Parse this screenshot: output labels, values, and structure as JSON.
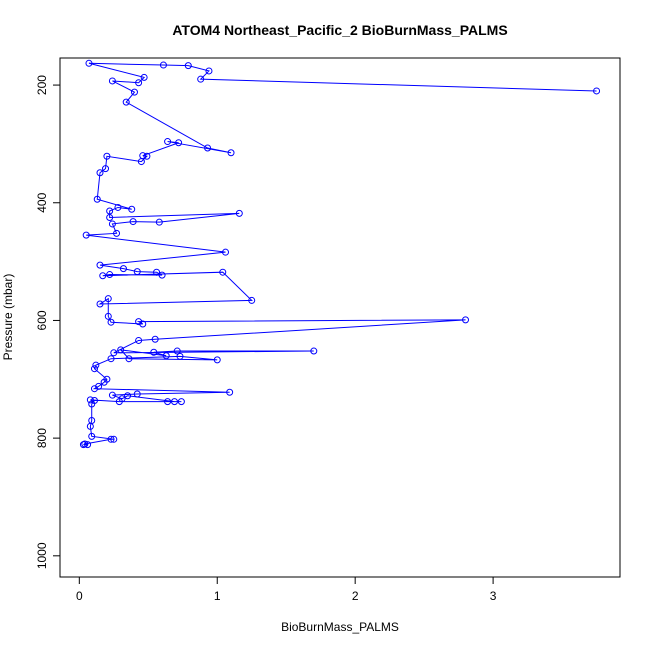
{
  "chart_data": {
    "type": "line",
    "title": "ATOM4 Northeast_Pacific_2 BioBurnMass_PALMS",
    "x_label": "BioBurnMass_PALMS",
    "y_label": "Pressure (mbar)",
    "color": "#0000ff",
    "x": [
      3.75,
      0.88,
      0.94,
      0.79,
      0.61,
      0.07,
      0.47,
      0.43,
      0.24,
      0.4,
      0.34,
      0.93,
      1.1,
      0.64,
      0.72,
      0.46,
      0.49,
      0.45,
      0.2,
      0.19,
      0.15,
      0.13,
      0.38,
      0.28,
      0.22,
      0.22,
      1.16,
      0.58,
      0.39,
      0.24,
      0.27,
      0.05,
      1.06,
      0.15,
      0.32,
      0.42,
      0.56,
      0.6,
      0.22,
      0.17,
      1.04,
      1.25,
      0.15,
      0.21,
      0.21,
      0.23,
      0.46,
      0.43,
      2.8,
      0.55,
      0.43,
      0.25,
      1.7,
      0.71,
      0.54,
      0.63,
      0.3,
      0.36,
      1.0,
      0.73,
      0.23,
      0.12,
      0.11,
      0.2,
      0.18,
      0.14,
      0.11,
      1.09,
      0.42,
      0.24,
      0.31,
      0.35,
      0.69,
      0.74,
      0.64,
      0.29,
      0.08,
      0.11,
      0.09,
      0.09,
      0.08,
      0.09,
      0.25,
      0.23,
      0.04,
      0.03,
      0.06
    ],
    "values": [
      210,
      190,
      176,
      167,
      166,
      163,
      187,
      196,
      193,
      212,
      229,
      307,
      315,
      296,
      298,
      320,
      321,
      330,
      321,
      342,
      349,
      394,
      411,
      408,
      414,
      425,
      418,
      433,
      432,
      436,
      452,
      455,
      484,
      506,
      512,
      517,
      518,
      523,
      522,
      524,
      518,
      566,
      572,
      563,
      593,
      603,
      606,
      602,
      599,
      632,
      634,
      655,
      652,
      652,
      654,
      660,
      650,
      665,
      667,
      661,
      665,
      676,
      682,
      700,
      705,
      712,
      716,
      722,
      725,
      727,
      733,
      728,
      738,
      738,
      738,
      738,
      735,
      736,
      742,
      770,
      780,
      797,
      802,
      802,
      810,
      811,
      811
    ],
    "xlim": [
      -0.14,
      3.92
    ],
    "ylim": [
      1036,
      154
    ],
    "xticks": [
      0,
      1,
      2,
      3
    ],
    "yticks": [
      200,
      400,
      600,
      800,
      1000
    ]
  }
}
